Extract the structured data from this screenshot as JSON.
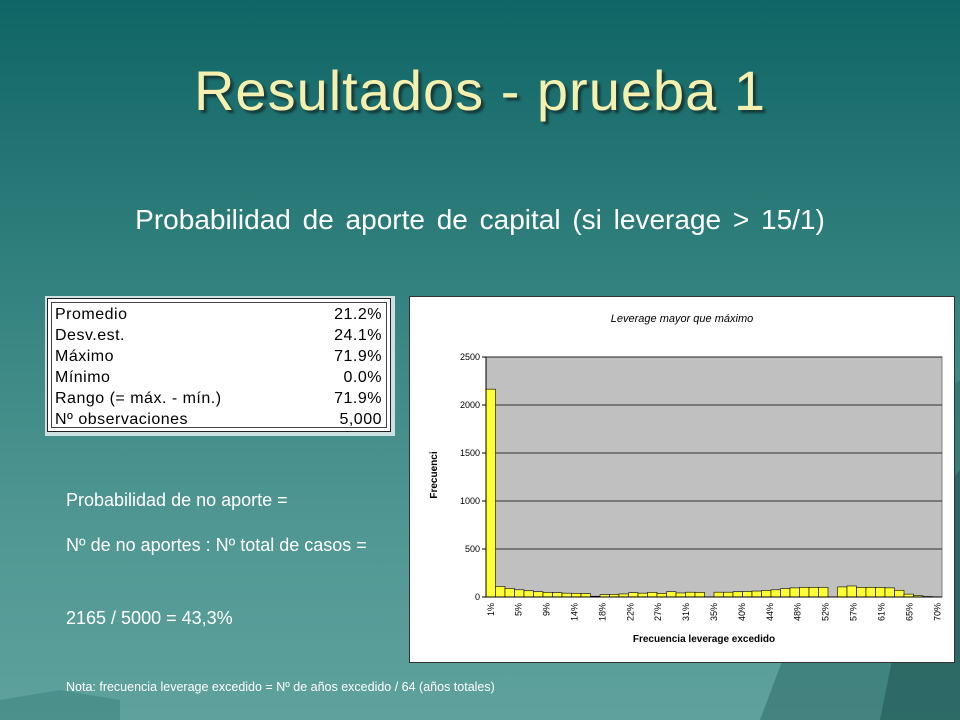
{
  "title": "Resultados - prueba 1",
  "subtitle": "Probabilidad de aporte de capital (si leverage > 15/1)",
  "stats": [
    {
      "label": "Promedio",
      "value": "21.2%"
    },
    {
      "label": "Desv.est.",
      "value": "24.1%"
    },
    {
      "label": "Máximo",
      "value": "71.9%"
    },
    {
      "label": "Mínimo",
      "value": "0.0%"
    },
    {
      "label": "Rango (= máx. - mín.)",
      "value": "71.9%"
    },
    {
      "label": "Nº observaciones",
      "value": "5,000"
    }
  ],
  "text": {
    "line1": "Probabilidad de no aporte =",
    "line2": "Nº de no aportes : Nº total de casos =",
    "line3": "2165 / 5000 = 43,3%"
  },
  "note": "Nota: frecuencia leverage excedido = Nº de años excedido / 64 (años totales)",
  "chart_data": {
    "type": "bar",
    "title": "Leverage mayor que máximo",
    "xlabel": "Frecuencia leverage excedido",
    "ylabel": "Frecuenci",
    "ylim": [
      0,
      2500
    ],
    "yticks": [
      0,
      500,
      1000,
      1500,
      2000,
      2500
    ],
    "xtick_labels": [
      "1%",
      "5%",
      "9%",
      "14%",
      "18%",
      "22%",
      "27%",
      "31%",
      "35%",
      "40%",
      "44%",
      "48%",
      "52%",
      "57%",
      "61%",
      "65%",
      "70%"
    ],
    "grid": "horizontal",
    "values": [
      2165,
      110,
      90,
      75,
      65,
      55,
      48,
      45,
      40,
      38,
      35,
      8,
      25,
      28,
      32,
      45,
      40,
      48,
      38,
      55,
      42,
      50,
      48,
      0,
      50,
      50,
      55,
      58,
      62,
      68,
      75,
      88,
      95,
      100,
      100,
      100,
      0,
      105,
      115,
      100,
      100,
      100,
      95,
      70,
      30,
      15,
      5,
      0
    ]
  },
  "colors": {
    "bar_fill": "#ffff33",
    "plot_bg": "#c0c0c0",
    "title": "#f6f0b0"
  }
}
